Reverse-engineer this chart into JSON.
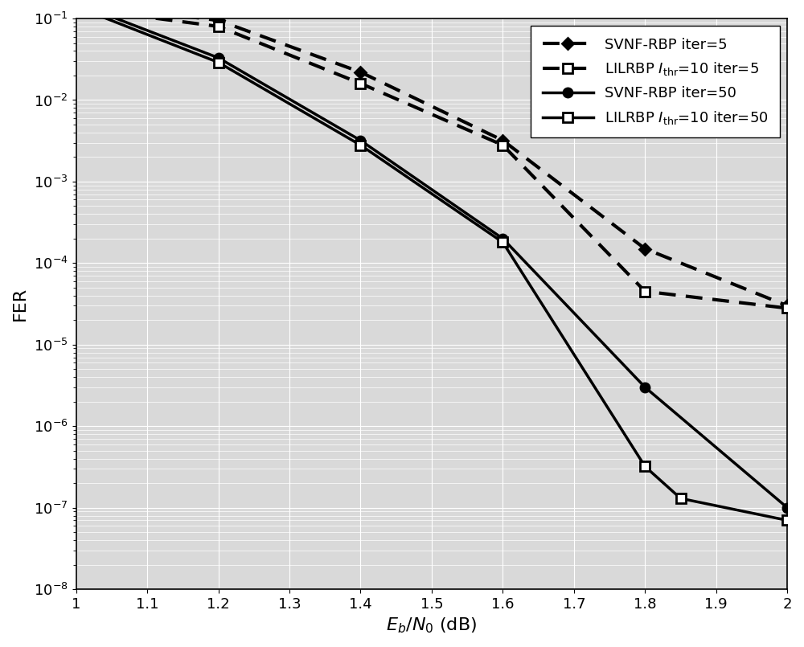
{
  "series": [
    {
      "label": "SVNF-RBP iter=5",
      "x": [
        1.0,
        1.2,
        1.4,
        1.6,
        1.8,
        2.0
      ],
      "y": [
        0.155,
        0.095,
        0.022,
        0.0032,
        0.00015,
        3e-05
      ],
      "linestyle": "dotted_heavy",
      "marker": "D",
      "marker_filled": true,
      "color": "black",
      "linewidth": 2.0,
      "markersize": 7
    },
    {
      "label": "LILRBP $I_{\\mathrm{thr}}$=10 iter=5",
      "x": [
        1.0,
        1.2,
        1.4,
        1.6,
        1.8,
        2.0
      ],
      "y": [
        0.135,
        0.08,
        0.016,
        0.0028,
        4.5e-05,
        2.8e-05
      ],
      "linestyle": "dotted_heavy",
      "marker": "s",
      "marker_filled": false,
      "color": "black",
      "linewidth": 2.0,
      "markersize": 9
    },
    {
      "label": "SVNF-RBP iter=50",
      "x": [
        1.0,
        1.2,
        1.4,
        1.6,
        1.8,
        2.0
      ],
      "y": [
        0.155,
        0.033,
        0.0032,
        0.0002,
        3e-06,
        1e-07
      ],
      "linestyle": "solid",
      "marker": "o",
      "marker_filled": true,
      "color": "black",
      "linewidth": 2.5,
      "markersize": 8
    },
    {
      "label": "LILRBP $I_{\\mathrm{thr}}$=10 iter=50",
      "x": [
        1.0,
        1.2,
        1.4,
        1.6,
        1.8,
        1.85,
        2.0
      ],
      "y": [
        0.14,
        0.029,
        0.0028,
        0.00018,
        3.2e-07,
        1.3e-07,
        7e-08
      ],
      "linestyle": "solid",
      "marker": "s",
      "marker_filled": false,
      "color": "black",
      "linewidth": 2.5,
      "markersize": 9
    }
  ],
  "xlabel": "$E_b/N_0$ (dB)",
  "ylabel": "FER",
  "xlim": [
    1.0,
    2.0
  ],
  "ylim_log": [
    -8,
    -1
  ],
  "xticks": [
    1.0,
    1.1,
    1.2,
    1.3,
    1.4,
    1.5,
    1.6,
    1.7,
    1.8,
    1.9,
    2.0
  ],
  "background_color": "#ffffff",
  "plot_bg_color": "#d9d9d9",
  "grid_color": "#ffffff",
  "grid_minor_color": "#ffffff"
}
